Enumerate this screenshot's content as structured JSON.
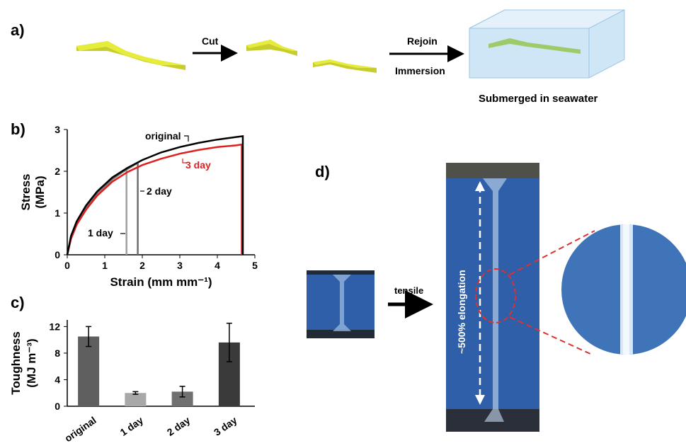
{
  "panels": {
    "a": "a)",
    "b": "b)",
    "c": "c)",
    "d": "d)"
  },
  "panel_a": {
    "step1": "Cut",
    "step2_line1": "Rejoin",
    "step2_line2": "Immersion",
    "result": "Submerged in seawater"
  },
  "panel_d": {
    "arrow_label": "tensile",
    "elongation_label": "~500% elongation"
  },
  "colors": {
    "original": "#000000",
    "day1": "#a0a0a0",
    "day2": "#6e6e6e",
    "day3": "#e02020",
    "specimen": "#e6ec3a",
    "photo_blue": "#2f5fa8",
    "zoom_dash": "#e03030"
  },
  "chart_data": [
    {
      "type": "line",
      "xlabel": "Strain (mm mm⁻¹)",
      "ylabel_line1": "Stress",
      "ylabel_line2": "(MPa)",
      "xlim": [
        0,
        5
      ],
      "ylim": [
        0,
        3
      ],
      "x_ticks": [
        "0",
        "1",
        "2",
        "3",
        "4",
        "5"
      ],
      "y_ticks": [
        "0",
        "1",
        "2",
        "3"
      ],
      "series": [
        {
          "name": "original",
          "color_key": "original",
          "x": [
            0,
            0.1,
            0.25,
            0.5,
            0.8,
            1.2,
            1.6,
            2.0,
            2.5,
            3.0,
            3.5,
            4.0,
            4.5,
            4.68,
            4.68
          ],
          "y": [
            0,
            0.45,
            0.8,
            1.18,
            1.52,
            1.85,
            2.08,
            2.27,
            2.45,
            2.58,
            2.68,
            2.76,
            2.82,
            2.84,
            0
          ]
        },
        {
          "name": "3 day",
          "color_key": "day3",
          "x": [
            0,
            0.1,
            0.25,
            0.5,
            0.8,
            1.2,
            1.6,
            2.0,
            2.5,
            3.0,
            3.5,
            4.0,
            4.5,
            4.65,
            4.65
          ],
          "y": [
            0,
            0.38,
            0.72,
            1.08,
            1.42,
            1.75,
            1.98,
            2.15,
            2.3,
            2.42,
            2.51,
            2.58,
            2.62,
            2.64,
            0
          ]
        },
        {
          "name": "2 day",
          "color_key": "day2",
          "x": [
            0,
            0.1,
            0.25,
            0.5,
            0.8,
            1.2,
            1.5,
            1.88,
            1.88
          ],
          "y": [
            0,
            0.42,
            0.77,
            1.14,
            1.49,
            1.82,
            2.0,
            2.2,
            0
          ]
        },
        {
          "name": "1 day",
          "color_key": "day1",
          "x": [
            0,
            0.1,
            0.25,
            0.5,
            0.8,
            1.2,
            1.58,
            1.58
          ],
          "y": [
            0,
            0.41,
            0.76,
            1.13,
            1.47,
            1.8,
            2.05,
            0
          ]
        }
      ],
      "annotations": [
        "original",
        "3 day",
        "2 day",
        "1 day"
      ]
    },
    {
      "type": "bar",
      "ylabel_line1": "Toughness",
      "ylabel_line2": "(MJ m⁻³)",
      "categories": [
        "original",
        "1 day",
        "2 day",
        "3 day"
      ],
      "values": [
        10.5,
        2.0,
        2.2,
        9.6
      ],
      "errors": [
        1.5,
        0.2,
        0.8,
        2.9
      ],
      "bar_colors": [
        "#5f5f5f",
        "#a8a8a8",
        "#707070",
        "#3a3a3a"
      ],
      "ylim": [
        0,
        13
      ],
      "y_ticks": [
        "0",
        "4",
        "8",
        "12"
      ]
    }
  ]
}
